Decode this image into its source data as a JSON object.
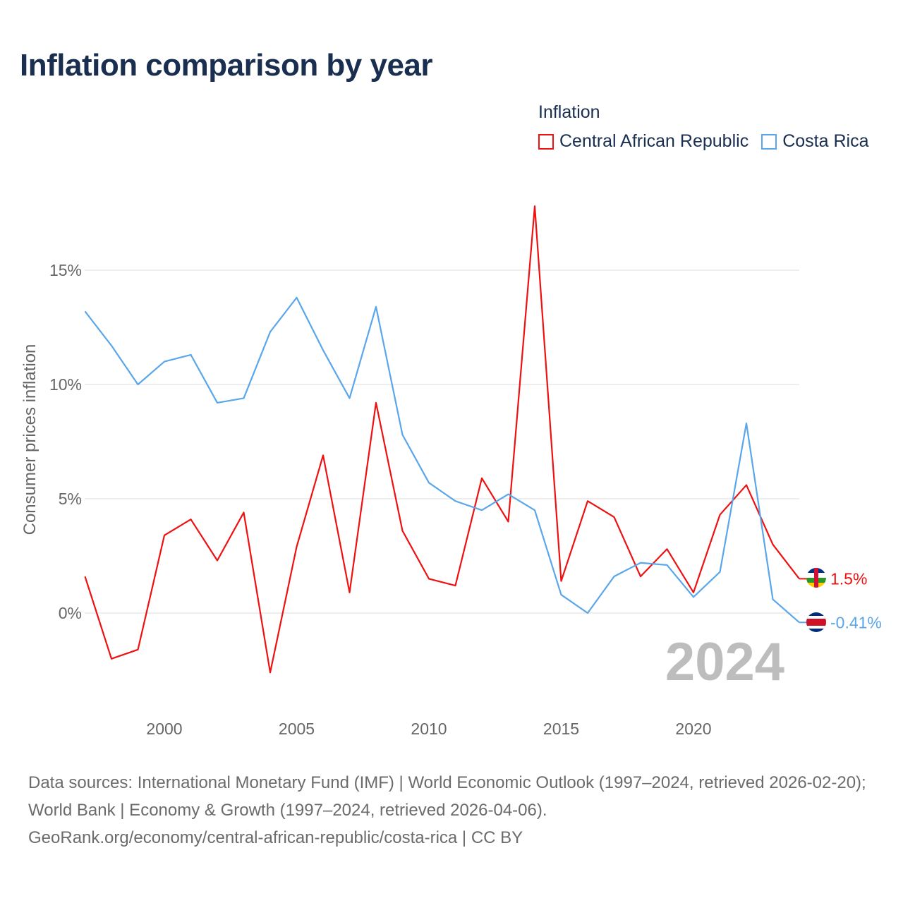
{
  "chart_data": {
    "type": "line",
    "title": "Inflation comparison by year",
    "legend_title": "Inflation",
    "legend_position": "top-right",
    "ylabel": "Consumer prices inflation",
    "xlabel": "",
    "xlim": [
      1997,
      2024
    ],
    "ylim": [
      -4,
      18
    ],
    "grid": true,
    "x_ticks": [
      2000,
      2005,
      2010,
      2015,
      2020
    ],
    "x_tick_labels": [
      "2000",
      "2005",
      "2010",
      "2015",
      "2020"
    ],
    "y_ticks": [
      0,
      5,
      10,
      15
    ],
    "y_tick_labels": [
      "0%",
      "5%",
      "10%",
      "15%"
    ],
    "year_watermark": "2024",
    "x": [
      1997,
      1998,
      1999,
      2000,
      2001,
      2002,
      2003,
      2004,
      2005,
      2006,
      2007,
      2008,
      2009,
      2010,
      2011,
      2012,
      2013,
      2014,
      2015,
      2016,
      2017,
      2018,
      2019,
      2020,
      2021,
      2022,
      2023,
      2024
    ],
    "series": [
      {
        "name": "Central African Republic",
        "color": "#ee1111",
        "end_label": "1.5%",
        "values": [
          1.6,
          -2.0,
          -1.6,
          3.4,
          4.1,
          2.3,
          4.4,
          -2.6,
          2.9,
          6.9,
          0.9,
          9.2,
          3.6,
          1.5,
          1.2,
          5.9,
          4.0,
          17.8,
          1.4,
          4.9,
          4.2,
          1.6,
          2.8,
          0.9,
          4.3,
          5.6,
          3.0,
          1.5
        ]
      },
      {
        "name": "Costa Rica",
        "color": "#5aa6ea",
        "end_label": "-0.41%",
        "values": [
          13.2,
          11.7,
          10.0,
          11.0,
          11.3,
          9.2,
          9.4,
          12.3,
          13.8,
          11.5,
          9.4,
          13.4,
          7.8,
          5.7,
          4.9,
          4.5,
          5.2,
          4.5,
          0.8,
          0.0,
          1.6,
          2.2,
          2.1,
          0.7,
          1.8,
          8.3,
          0.6,
          -0.41
        ]
      }
    ]
  },
  "footer": {
    "sources": "Data sources: International Monetary Fund (IMF) | World Economic Outlook (1997–2024, retrieved 2026-02-20); World Bank | Economy & Growth (1997–2024, retrieved 2026-04-06).",
    "url": "GeoRank.org/economy/central-african-republic/costa-rica | CC BY"
  }
}
